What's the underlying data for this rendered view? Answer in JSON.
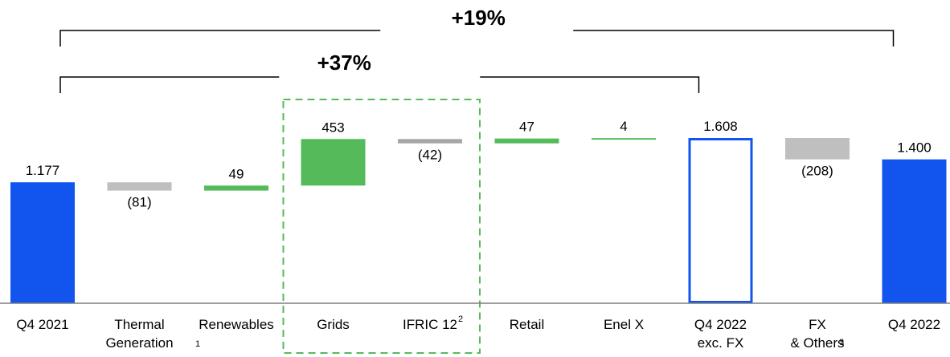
{
  "chart_data": {
    "type": "bar",
    "subtype": "waterfall",
    "title": "",
    "xlabel": "",
    "ylabel": "",
    "categories": [
      {
        "line1": "Q4 2021",
        "line2": "",
        "note": ""
      },
      {
        "line1": "Thermal",
        "line2": "Generation",
        "note": ""
      },
      {
        "line1": "Renewables",
        "line2": "",
        "note": "1"
      },
      {
        "line1": "Grids",
        "line2": "",
        "note": ""
      },
      {
        "line1": "IFRIC 12",
        "line2": "",
        "note": "2"
      },
      {
        "line1": "Retail",
        "line2": "",
        "note": ""
      },
      {
        "line1": "Enel X",
        "line2": "",
        "note": ""
      },
      {
        "line1": "Q4 2022",
        "line2": "exc. FX",
        "note": ""
      },
      {
        "line1": "FX",
        "line2": "& Others",
        "note": "3"
      },
      {
        "line1": "Q4 2022",
        "line2": "",
        "note": ""
      }
    ],
    "bars": [
      {
        "kind": "total",
        "value": 1177,
        "label": "1.177",
        "style": "solid",
        "color": "#1155ee"
      },
      {
        "kind": "delta",
        "value": -81,
        "label": "(81)",
        "color": "#bfbfbf"
      },
      {
        "kind": "delta",
        "value": 49,
        "label": "49",
        "color": "#55bb5a"
      },
      {
        "kind": "delta",
        "value": 453,
        "label": "453",
        "color": "#55bb5a"
      },
      {
        "kind": "delta",
        "value": -42,
        "label": "(42)",
        "color": "#a6a6a6"
      },
      {
        "kind": "delta",
        "value": 47,
        "label": "47",
        "color": "#55bb5a"
      },
      {
        "kind": "delta",
        "value": 4,
        "label": "4",
        "color": "#55bb5a"
      },
      {
        "kind": "total",
        "value": 1608,
        "label": "1.608",
        "style": "outline",
        "color": "#1155ee"
      },
      {
        "kind": "delta",
        "value": -208,
        "label": "(208)",
        "color": "#bfbfbf"
      },
      {
        "kind": "total",
        "value": 1400,
        "label": "1.400",
        "style": "solid",
        "color": "#1155ee"
      }
    ],
    "brackets": [
      {
        "label": "+19%",
        "from_category": 0,
        "to_category": 9
      },
      {
        "label": "+37%",
        "from_category": 0,
        "to_category": 7
      }
    ],
    "highlight_group": {
      "from_category": 3,
      "to_category": 4,
      "color": "#55bb5a",
      "style": "dashed"
    }
  }
}
